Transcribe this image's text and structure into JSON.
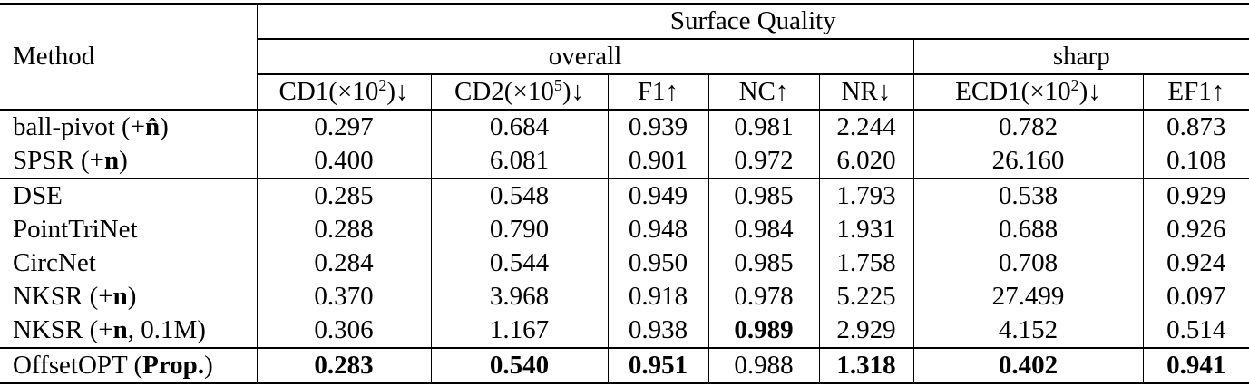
{
  "table": {
    "corner_header": "Method",
    "span_header": "Surface Quality",
    "groups": [
      {
        "label": "overall"
      },
      {
        "label": "sharp"
      }
    ],
    "columns": [
      {
        "pre": "CD1(×10",
        "sup": "2",
        "post": ")",
        "arrow": "↓"
      },
      {
        "pre": "CD2(×10",
        "sup": "5",
        "post": ")",
        "arrow": "↓"
      },
      {
        "pre": "F1",
        "sup": "",
        "post": "",
        "arrow": "↑"
      },
      {
        "pre": "NC",
        "sup": "",
        "post": "",
        "arrow": "↑"
      },
      {
        "pre": "NR",
        "sup": "",
        "post": "",
        "arrow": "↓"
      },
      {
        "pre": "ECD1(×10",
        "sup": "2",
        "post": ")",
        "arrow": "↓"
      },
      {
        "pre": "EF1",
        "sup": "",
        "post": "",
        "arrow": "↑"
      }
    ],
    "rows": [
      {
        "method": {
          "pre": "ball-pivot (+",
          "bold": "n̂",
          "post": ")"
        },
        "group_end": false,
        "values": [
          {
            "v": "0.297",
            "b": false
          },
          {
            "v": "0.684",
            "b": false
          },
          {
            "v": "0.939",
            "b": false
          },
          {
            "v": "0.981",
            "b": false
          },
          {
            "v": "2.244",
            "b": false
          },
          {
            "v": "0.782",
            "b": false
          },
          {
            "v": "0.873",
            "b": false
          }
        ]
      },
      {
        "method": {
          "pre": "SPSR (+",
          "bold": "n",
          "post": ")"
        },
        "group_end": true,
        "values": [
          {
            "v": "0.400",
            "b": false
          },
          {
            "v": "6.081",
            "b": false
          },
          {
            "v": "0.901",
            "b": false
          },
          {
            "v": "0.972",
            "b": false
          },
          {
            "v": "6.020",
            "b": false
          },
          {
            "v": "26.160",
            "b": false
          },
          {
            "v": "0.108",
            "b": false
          }
        ]
      },
      {
        "method": {
          "pre": "DSE",
          "bold": "",
          "post": ""
        },
        "group_end": false,
        "values": [
          {
            "v": "0.285",
            "b": false
          },
          {
            "v": "0.548",
            "b": false
          },
          {
            "v": "0.949",
            "b": false
          },
          {
            "v": "0.985",
            "b": false
          },
          {
            "v": "1.793",
            "b": false
          },
          {
            "v": "0.538",
            "b": false
          },
          {
            "v": "0.929",
            "b": false
          }
        ]
      },
      {
        "method": {
          "pre": "PointTriNet",
          "bold": "",
          "post": ""
        },
        "group_end": false,
        "values": [
          {
            "v": "0.288",
            "b": false
          },
          {
            "v": "0.790",
            "b": false
          },
          {
            "v": "0.948",
            "b": false
          },
          {
            "v": "0.984",
            "b": false
          },
          {
            "v": "1.931",
            "b": false
          },
          {
            "v": "0.688",
            "b": false
          },
          {
            "v": "0.926",
            "b": false
          }
        ]
      },
      {
        "method": {
          "pre": "CircNet",
          "bold": "",
          "post": ""
        },
        "group_end": false,
        "values": [
          {
            "v": "0.284",
            "b": false
          },
          {
            "v": "0.544",
            "b": false
          },
          {
            "v": "0.950",
            "b": false
          },
          {
            "v": "0.985",
            "b": false
          },
          {
            "v": "1.758",
            "b": false
          },
          {
            "v": "0.708",
            "b": false
          },
          {
            "v": "0.924",
            "b": false
          }
        ]
      },
      {
        "method": {
          "pre": "NKSR (+",
          "bold": "n",
          "post": ")"
        },
        "group_end": false,
        "values": [
          {
            "v": "0.370",
            "b": false
          },
          {
            "v": "3.968",
            "b": false
          },
          {
            "v": "0.918",
            "b": false
          },
          {
            "v": "0.978",
            "b": false
          },
          {
            "v": "5.225",
            "b": false
          },
          {
            "v": "27.499",
            "b": false
          },
          {
            "v": "0.097",
            "b": false
          }
        ]
      },
      {
        "method": {
          "pre": "NKSR (+",
          "bold": "n",
          "post": ", 0.1M)"
        },
        "group_end": true,
        "values": [
          {
            "v": "0.306",
            "b": false
          },
          {
            "v": "1.167",
            "b": false
          },
          {
            "v": "0.938",
            "b": false
          },
          {
            "v": "0.989",
            "b": true
          },
          {
            "v": "2.929",
            "b": false
          },
          {
            "v": "4.152",
            "b": false
          },
          {
            "v": "0.514",
            "b": false
          }
        ]
      },
      {
        "method": {
          "pre": "OffsetOPT (",
          "bold": "Prop.",
          "post": ")"
        },
        "group_end": false,
        "values": [
          {
            "v": "0.283",
            "b": true
          },
          {
            "v": "0.540",
            "b": true
          },
          {
            "v": "0.951",
            "b": true
          },
          {
            "v": "0.988",
            "b": false
          },
          {
            "v": "1.318",
            "b": true
          },
          {
            "v": "0.402",
            "b": true
          },
          {
            "v": "0.941",
            "b": true
          }
        ]
      }
    ]
  }
}
